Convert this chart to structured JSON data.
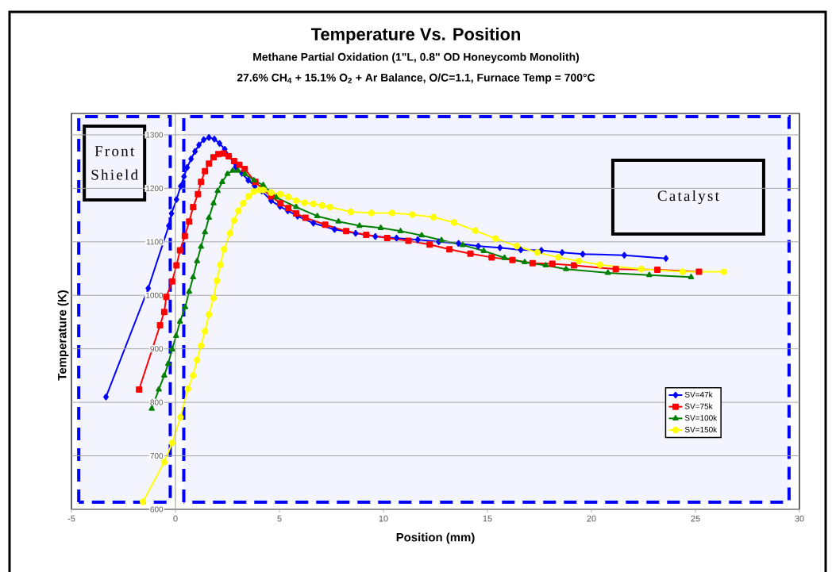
{
  "chart_data": {
    "type": "line",
    "title": "Temperature Vs. Position",
    "subtitle": "Methane Partial Oxidation (1\"L, 0.8\" OD Honeycomb Monolith)",
    "annotations": [
      "27.6% CH$_{4}$ + 15.1% O$_{2}$ + Ar Balance, O/C=1.1, Furnace Temp = 700°C"
    ],
    "xlabel": "Position (mm)",
    "ylabel": "Temperature (K)",
    "xlim": [
      -5,
      30
    ],
    "xticks": [
      -5,
      0,
      5,
      10,
      15,
      20,
      25,
      30
    ],
    "ylim": [
      600,
      1340
    ],
    "yticks": [
      600,
      700,
      800,
      900,
      1000,
      1100,
      1200,
      1300
    ],
    "grid": "y",
    "legend": "bottom right",
    "line_style": "solid",
    "bands": [
      {
        "axis": "x",
        "from": -4.65,
        "to": -0.25,
        "label": "Front Shield",
        "color": "#0000ff"
      },
      {
        "axis": "x",
        "from": 0.4,
        "to": 29.5,
        "label": "Catalyst",
        "color": "#0000ff"
      }
    ],
    "series": [
      {
        "name": "SV=47k",
        "color": "#0000ff",
        "marker": "diamond",
        "x": [
          -3.34,
          -1.31,
          -0.32,
          -0.19,
          0.05,
          0.25,
          0.41,
          0.56,
          0.75,
          0.94,
          1.13,
          1.36,
          1.61,
          1.87,
          2.12,
          2.37,
          2.6,
          2.9,
          3.2,
          3.5,
          3.8,
          4.15,
          4.6,
          5.03,
          5.4,
          5.87,
          6.63,
          7.65,
          8.66,
          9.61,
          10.63,
          11.65,
          12.66,
          13.61,
          14.56,
          15.6,
          16.6,
          17.59,
          18.59,
          19.58,
          21.58,
          23.58
        ],
        "values": [
          810,
          1013,
          1130,
          1153,
          1179,
          1204,
          1222,
          1239,
          1255,
          1269,
          1281,
          1291,
          1295,
          1292,
          1284,
          1273,
          1260,
          1240,
          1228,
          1215,
          1205,
          1195,
          1177,
          1166,
          1158,
          1148,
          1135,
          1123,
          1116,
          1110,
          1107,
          1104,
          1100,
          1097,
          1092,
          1089,
          1085,
          1084,
          1080,
          1077,
          1075,
          1069
        ]
      },
      {
        "name": "SV=75k",
        "color": "#ff0000",
        "marker": "square",
        "x": [
          -1.75,
          -0.74,
          -0.54,
          -0.44,
          -0.16,
          0.05,
          0.22,
          0.45,
          0.66,
          0.85,
          1.08,
          1.23,
          1.42,
          1.61,
          1.83,
          2.06,
          2.31,
          2.56,
          2.82,
          3.07,
          3.33,
          3.84,
          4.15,
          4.6,
          5.04,
          5.42,
          5.8,
          6.25,
          7.2,
          8.21,
          9.17,
          10.18,
          11.2,
          12.22,
          13.17,
          14.18,
          15.2,
          16.2,
          17.17,
          18.12,
          19.16,
          21.17,
          23.17,
          25.17
        ],
        "values": [
          824,
          944,
          969,
          997,
          1026,
          1056,
          1084,
          1111,
          1138,
          1165,
          1189,
          1212,
          1232,
          1246,
          1258,
          1264,
          1265,
          1260,
          1251,
          1244,
          1236,
          1212,
          1200,
          1185,
          1172,
          1163,
          1153,
          1145,
          1132,
          1120,
          1113,
          1107,
          1102,
          1095,
          1086,
          1078,
          1071,
          1066,
          1060,
          1059,
          1056,
          1049,
          1048,
          1044
        ]
      },
      {
        "name": "SV=100k",
        "color": "#008000",
        "marker": "triangle",
        "x": [
          -1.14,
          -0.8,
          -0.54,
          -0.35,
          -0.16,
          0.03,
          0.22,
          0.47,
          0.66,
          0.85,
          1.04,
          1.23,
          1.42,
          1.61,
          1.83,
          2.03,
          2.25,
          2.5,
          2.75,
          3.01,
          3.33,
          3.77,
          4.22,
          4.85,
          5.8,
          6.82,
          7.84,
          8.85,
          9.87,
          10.82,
          11.84,
          12.79,
          13.81,
          14.82,
          15.82,
          16.79,
          17.8,
          18.78,
          20.79,
          22.78,
          24.79
        ],
        "values": [
          788,
          824,
          850,
          872,
          899,
          924,
          951,
          978,
          1007,
          1034,
          1064,
          1091,
          1118,
          1145,
          1172,
          1195,
          1212,
          1227,
          1233,
          1233,
          1227,
          1215,
          1206,
          1183,
          1165,
          1148,
          1138,
          1130,
          1126,
          1120,
          1112,
          1103,
          1094,
          1083,
          1070,
          1062,
          1056,
          1049,
          1042,
          1038,
          1034
        ]
      },
      {
        "name": "SV=150k",
        "color": "#ffff00",
        "marker": "circle",
        "x": [
          -1.56,
          -0.54,
          -0.16,
          0.24,
          0.6,
          0.85,
          1.04,
          1.23,
          1.42,
          1.61,
          1.83,
          1.99,
          2.16,
          2.34,
          2.63,
          2.82,
          3.03,
          3.26,
          3.52,
          3.77,
          4.03,
          4.22,
          4.6,
          5.04,
          5.42,
          5.8,
          6.21,
          6.63,
          7.05,
          7.43,
          8.43,
          9.42,
          10.41,
          11.39,
          12.41,
          13.4,
          14.41,
          15.39,
          16.41,
          17.4,
          18.4,
          19.39,
          20.41,
          22.4,
          24.38,
          26.37
        ],
        "values": [
          614,
          688,
          724,
          772,
          825,
          850,
          879,
          906,
          933,
          964,
          995,
          1027,
          1057,
          1086,
          1116,
          1140,
          1158,
          1172,
          1185,
          1194,
          1197,
          1197,
          1192,
          1189,
          1184,
          1177,
          1173,
          1171,
          1168,
          1165,
          1156,
          1154,
          1154,
          1151,
          1146,
          1136,
          1121,
          1106,
          1092,
          1080,
          1071,
          1064,
          1057,
          1049,
          1044,
          1044
        ]
      }
    ]
  }
}
